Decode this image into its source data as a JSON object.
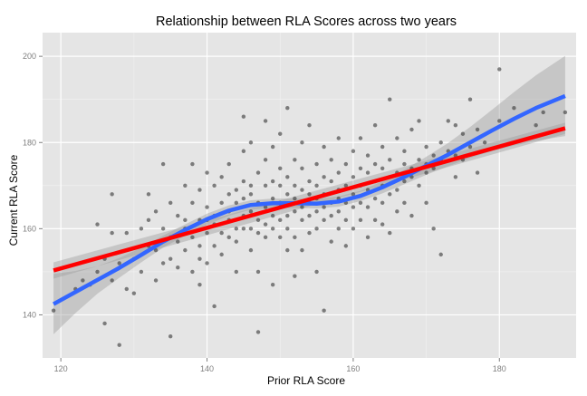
{
  "chart_data": {
    "type": "scatter",
    "title": "Relationship between RLA Scores across two years",
    "xlabel": "Prior RLA Score",
    "ylabel": "Current RLA Score",
    "xlim": [
      117.5,
      190.5
    ],
    "ylim": [
      130,
      205.5
    ],
    "xticks": [
      120,
      140,
      160,
      180
    ],
    "yticks": [
      140,
      160,
      180,
      200
    ],
    "x_tick_labels": [
      "120",
      "140",
      "160",
      "180"
    ],
    "y_tick_labels": [
      "140",
      "160",
      "180",
      "200"
    ],
    "grid": true,
    "background_color": "#e5e5e5",
    "grid_color": "#ffffff",
    "point_color": "#333333",
    "points": [
      [
        119,
        141
      ],
      [
        122,
        146
      ],
      [
        123,
        148
      ],
      [
        124,
        147
      ],
      [
        125,
        150
      ],
      [
        125,
        161
      ],
      [
        126,
        153
      ],
      [
        126,
        138
      ],
      [
        127,
        159
      ],
      [
        127,
        168
      ],
      [
        127,
        148
      ],
      [
        128,
        133
      ],
      [
        128,
        152
      ],
      [
        129,
        146
      ],
      [
        129,
        159
      ],
      [
        130,
        153
      ],
      [
        130,
        145
      ],
      [
        131,
        150
      ],
      [
        131,
        160
      ],
      [
        132,
        162
      ],
      [
        132,
        168
      ],
      [
        132,
        156
      ],
      [
        133,
        148
      ],
      [
        133,
        155
      ],
      [
        133,
        164
      ],
      [
        134,
        175
      ],
      [
        134,
        152
      ],
      [
        134,
        160
      ],
      [
        135,
        158
      ],
      [
        135,
        166
      ],
      [
        135,
        135
      ],
      [
        135,
        153
      ],
      [
        136,
        163
      ],
      [
        136,
        151
      ],
      [
        136,
        157
      ],
      [
        137,
        170
      ],
      [
        137,
        160
      ],
      [
        137,
        162
      ],
      [
        137,
        155
      ],
      [
        138,
        158
      ],
      [
        138,
        166
      ],
      [
        138,
        150
      ],
      [
        138,
        175
      ],
      [
        139,
        162
      ],
      [
        139,
        169
      ],
      [
        139,
        156
      ],
      [
        139,
        153
      ],
      [
        139,
        147
      ],
      [
        140,
        173
      ],
      [
        140,
        165
      ],
      [
        140,
        159
      ],
      [
        140,
        162
      ],
      [
        140,
        152
      ],
      [
        141,
        170
      ],
      [
        141,
        161
      ],
      [
        141,
        142
      ],
      [
        141,
        156
      ],
      [
        141,
        163
      ],
      [
        142,
        166
      ],
      [
        142,
        159
      ],
      [
        142,
        172
      ],
      [
        142,
        154
      ],
      [
        143,
        164
      ],
      [
        143,
        168
      ],
      [
        143,
        158
      ],
      [
        143,
        162
      ],
      [
        143,
        175
      ],
      [
        144,
        160
      ],
      [
        144,
        166
      ],
      [
        144,
        169
      ],
      [
        144,
        150
      ],
      [
        144,
        157
      ],
      [
        145,
        178
      ],
      [
        145,
        163
      ],
      [
        145,
        167
      ],
      [
        145,
        160
      ],
      [
        145,
        171
      ],
      [
        145,
        186
      ],
      [
        146,
        164
      ],
      [
        146,
        170
      ],
      [
        146,
        155
      ],
      [
        146,
        160
      ],
      [
        146,
        168
      ],
      [
        146,
        180
      ],
      [
        147,
        162
      ],
      [
        147,
        166
      ],
      [
        147,
        159
      ],
      [
        147,
        173
      ],
      [
        147,
        150
      ],
      [
        147,
        136
      ],
      [
        148,
        165
      ],
      [
        148,
        170
      ],
      [
        148,
        161
      ],
      [
        148,
        176
      ],
      [
        148,
        158
      ],
      [
        148,
        185
      ],
      [
        149,
        167
      ],
      [
        149,
        163
      ],
      [
        149,
        171
      ],
      [
        149,
        160
      ],
      [
        149,
        147
      ],
      [
        149,
        179
      ],
      [
        150,
        166
      ],
      [
        150,
        162
      ],
      [
        150,
        170
      ],
      [
        150,
        174
      ],
      [
        150,
        158
      ],
      [
        150,
        182
      ],
      [
        150,
        165
      ],
      [
        151,
        168
      ],
      [
        151,
        163
      ],
      [
        151,
        172
      ],
      [
        151,
        155
      ],
      [
        151,
        160
      ],
      [
        151,
        188
      ],
      [
        152,
        167
      ],
      [
        152,
        164
      ],
      [
        152,
        170
      ],
      [
        152,
        176
      ],
      [
        152,
        158
      ],
      [
        152,
        149
      ],
      [
        153,
        165
      ],
      [
        153,
        169
      ],
      [
        153,
        162
      ],
      [
        153,
        174
      ],
      [
        153,
        180
      ],
      [
        153,
        155
      ],
      [
        154,
        166
      ],
      [
        154,
        171
      ],
      [
        154,
        163
      ],
      [
        154,
        159
      ],
      [
        154,
        184
      ],
      [
        154,
        168
      ],
      [
        155,
        164
      ],
      [
        155,
        170
      ],
      [
        155,
        167
      ],
      [
        155,
        175
      ],
      [
        155,
        160
      ],
      [
        155,
        150
      ],
      [
        156,
        168
      ],
      [
        156,
        162
      ],
      [
        156,
        172
      ],
      [
        156,
        165
      ],
      [
        156,
        179
      ],
      [
        156,
        141
      ],
      [
        157,
        166
      ],
      [
        157,
        171
      ],
      [
        157,
        163
      ],
      [
        157,
        157
      ],
      [
        157,
        176
      ],
      [
        158,
        169
      ],
      [
        158,
        164
      ],
      [
        158,
        173
      ],
      [
        158,
        160
      ],
      [
        158,
        181
      ],
      [
        158,
        167
      ],
      [
        159,
        166
      ],
      [
        159,
        170
      ],
      [
        159,
        162
      ],
      [
        159,
        175
      ],
      [
        159,
        156
      ],
      [
        160,
        168
      ],
      [
        160,
        172
      ],
      [
        160,
        165
      ],
      [
        160,
        178
      ],
      [
        160,
        160
      ],
      [
        161,
        170
      ],
      [
        161,
        166
      ],
      [
        161,
        174
      ],
      [
        161,
        162
      ],
      [
        161,
        181
      ],
      [
        162,
        169
      ],
      [
        162,
        173
      ],
      [
        162,
        165
      ],
      [
        162,
        158
      ],
      [
        162,
        177
      ],
      [
        163,
        171
      ],
      [
        163,
        167
      ],
      [
        163,
        175
      ],
      [
        163,
        184
      ],
      [
        163,
        162
      ],
      [
        164,
        170
      ],
      [
        164,
        174
      ],
      [
        164,
        166
      ],
      [
        164,
        179
      ],
      [
        164,
        161
      ],
      [
        165,
        172
      ],
      [
        165,
        176
      ],
      [
        165,
        168
      ],
      [
        165,
        190
      ],
      [
        165,
        159
      ],
      [
        166,
        173
      ],
      [
        166,
        169
      ],
      [
        166,
        181
      ],
      [
        166,
        164
      ],
      [
        167,
        175
      ],
      [
        167,
        171
      ],
      [
        167,
        178
      ],
      [
        167,
        166
      ],
      [
        168,
        174
      ],
      [
        168,
        172
      ],
      [
        168,
        183
      ],
      [
        168,
        163
      ],
      [
        169,
        176
      ],
      [
        169,
        170
      ],
      [
        169,
        185
      ],
      [
        170,
        175
      ],
      [
        170,
        173
      ],
      [
        170,
        179
      ],
      [
        170,
        166
      ],
      [
        171,
        177
      ],
      [
        171,
        174
      ],
      [
        171,
        160
      ],
      [
        172,
        176
      ],
      [
        172,
        154
      ],
      [
        172,
        180
      ],
      [
        173,
        185
      ],
      [
        173,
        178
      ],
      [
        174,
        184
      ],
      [
        174,
        177
      ],
      [
        174,
        172
      ],
      [
        175,
        182
      ],
      [
        175,
        176
      ],
      [
        176,
        190
      ],
      [
        176,
        179
      ],
      [
        177,
        173
      ],
      [
        177,
        183
      ],
      [
        178,
        180
      ],
      [
        180,
        197
      ],
      [
        180,
        185
      ],
      [
        182,
        188
      ],
      [
        185,
        184
      ],
      [
        186,
        187
      ],
      [
        189,
        187
      ]
    ],
    "series": [
      {
        "name": "",
        "type": "line",
        "color": "#3366ff",
        "band_color": "#999999",
        "x": [
          119,
          122,
          125,
          128,
          131,
          134,
          137,
          140,
          143,
          146,
          149,
          152,
          155,
          158,
          161,
          164,
          167,
          170,
          173,
          176,
          179,
          182,
          185,
          189
        ],
        "y": [
          142.5,
          145.3,
          148.1,
          150.9,
          153.9,
          157.0,
          159.7,
          162.2,
          164.2,
          165.5,
          165.9,
          165.9,
          165.8,
          166.3,
          167.6,
          169.6,
          172.0,
          174.6,
          177.2,
          180.0,
          182.8,
          185.5,
          188.0,
          190.8
        ],
        "lower": [
          135.5,
          140.4,
          144.9,
          148.6,
          152.2,
          155.6,
          158.4,
          160.9,
          163.0,
          164.4,
          164.8,
          164.8,
          164.7,
          165.1,
          166.4,
          168.2,
          170.3,
          172.5,
          174.5,
          176.4,
          178.0,
          179.3,
          180.4,
          181.5
        ],
        "upper": [
          149.5,
          150.2,
          151.3,
          153.2,
          155.6,
          158.4,
          161.0,
          163.5,
          165.4,
          166.6,
          167.0,
          167.0,
          166.9,
          167.5,
          168.8,
          171.0,
          173.7,
          176.7,
          179.9,
          183.6,
          187.6,
          191.7,
          195.6,
          200.1
        ]
      },
      {
        "name": "",
        "type": "line",
        "color": "#ff0000",
        "band_color": "#999999",
        "x": [
          119,
          189
        ],
        "y": [
          150.3,
          183.3
        ],
        "lower": [
          148.4,
          182.0
        ],
        "upper": [
          152.2,
          184.6
        ]
      }
    ]
  }
}
